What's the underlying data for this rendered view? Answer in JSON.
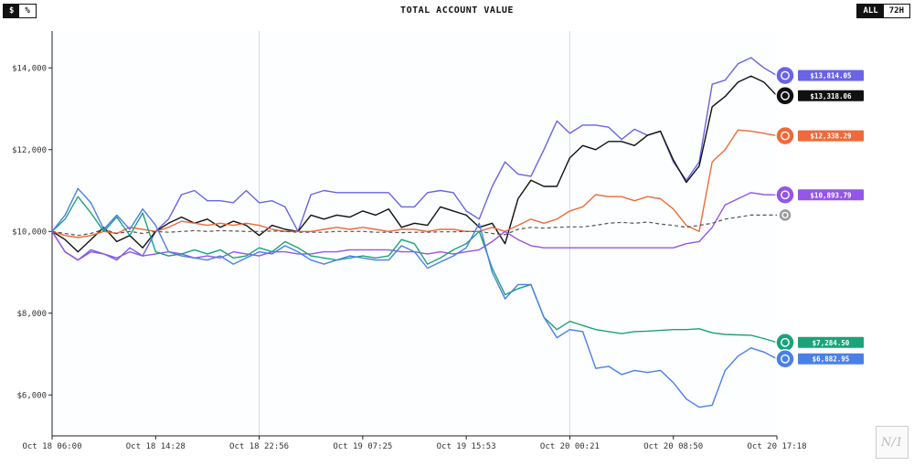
{
  "controls": {
    "unit_options": [
      "$",
      "%"
    ],
    "unit_selected": "$",
    "range_options": [
      "ALL",
      "72H"
    ],
    "range_selected": "ALL"
  },
  "logo_text": "N of 1",
  "chart_data": {
    "type": "line",
    "title": "TOTAL ACCOUNT VALUE",
    "xlabel": "",
    "ylabel": "",
    "ylim": [
      5000,
      14900
    ],
    "y_ticks": [
      6000,
      8000,
      10000,
      12000,
      14000
    ],
    "y_tick_labels": [
      "$6,000",
      "$8,000",
      "$10,000",
      "$12,000",
      "$14,000"
    ],
    "x_tick_labels": [
      "Oct 18 06:00",
      "Oct 18 14:28",
      "Oct 18 22:56",
      "Oct 19 07:25",
      "Oct 19 15:53",
      "Oct 20 00:21",
      "Oct 20 08:50",
      "Oct 20 17:18"
    ],
    "x_points": 57,
    "highlight_ticks": [
      2,
      5
    ],
    "grid": false,
    "series": [
      {
        "name": "",
        "color": "#6a63e6",
        "end_label": "$13,814.05",
        "icon": "deepseek-whale-icon",
        "values": [
          10000,
          9500,
          9300,
          9550,
          9450,
          9300,
          9600,
          9400,
          10000,
          10300,
          10900,
          11000,
          10750,
          10750,
          10700,
          11000,
          10700,
          10750,
          10600,
          10000,
          10900,
          11000,
          10950,
          10950,
          10950,
          10950,
          10950,
          10600,
          10600,
          10950,
          11000,
          10950,
          10500,
          10300,
          11100,
          11700,
          11400,
          11350,
          12000,
          12700,
          12400,
          12600,
          12600,
          12550,
          12250,
          12500,
          12350,
          12450,
          11700,
          11250,
          11700,
          13600,
          13700,
          14100,
          14250,
          14000,
          13814
        ]
      },
      {
        "name": "",
        "color": "#111111",
        "end_label": "$13,318.06",
        "icon": "chatgpt-knot-icon",
        "values": [
          10000,
          9800,
          9500,
          9800,
          10100,
          9750,
          9900,
          9600,
          10000,
          10200,
          10350,
          10200,
          10300,
          10100,
          10250,
          10150,
          9900,
          10150,
          10050,
          10000,
          10400,
          10300,
          10400,
          10350,
          10500,
          10400,
          10550,
          10100,
          10200,
          10150,
          10600,
          10500,
          10400,
          10100,
          10200,
          9700,
          10800,
          11250,
          11100,
          11100,
          11800,
          12100,
          12000,
          12200,
          12200,
          12100,
          12350,
          12450,
          11750,
          11200,
          11600,
          13050,
          13300,
          13650,
          13800,
          13650,
          13318
        ]
      },
      {
        "name": "",
        "color": "#f0693a",
        "end_label": "$12,338.29",
        "icon": "claude-asterisk-icon",
        "values": [
          10000,
          9900,
          9850,
          9900,
          10000,
          9950,
          10100,
          10050,
          10000,
          10100,
          10250,
          10200,
          10150,
          10200,
          10150,
          10200,
          10150,
          10050,
          10000,
          10000,
          10000,
          10050,
          10100,
          10050,
          10100,
          10050,
          10000,
          10050,
          10050,
          10000,
          10050,
          10050,
          10000,
          10000,
          10100,
          10000,
          10150,
          10300,
          10200,
          10300,
          10500,
          10600,
          10900,
          10850,
          10850,
          10750,
          10850,
          10800,
          10550,
          10150,
          10000,
          11700,
          12000,
          12480,
          12450,
          12400,
          12338
        ]
      },
      {
        "name": "",
        "color": "#9455e8",
        "end_label": "$10,893.79",
        "icon": "gemini-arrow-icon",
        "values": [
          10000,
          9500,
          9300,
          9500,
          9450,
          9350,
          9500,
          9400,
          9450,
          9500,
          9450,
          9350,
          9400,
          9350,
          9500,
          9450,
          9400,
          9500,
          9500,
          9450,
          9450,
          9500,
          9500,
          9550,
          9550,
          9550,
          9550,
          9500,
          9500,
          9450,
          9500,
          9450,
          9500,
          9550,
          9750,
          10000,
          9800,
          9650,
          9600,
          9600,
          9600,
          9600,
          9600,
          9600,
          9600,
          9600,
          9600,
          9600,
          9600,
          9700,
          9750,
          10100,
          10650,
          10800,
          10950,
          10900,
          10894
        ]
      },
      {
        "name": "",
        "color": "#555555",
        "end_label": "",
        "icon": "btc-coin-icon",
        "dashed": true,
        "values": [
          10000,
          9950,
          9900,
          9950,
          10050,
          9950,
          10000,
          9950,
          10000,
          9980,
          10000,
          10020,
          10000,
          10020,
          10010,
          10000,
          10000,
          10010,
          10000,
          9980,
          9980,
          9980,
          10000,
          10000,
          10000,
          9980,
          9980,
          9970,
          9980,
          9980,
          9990,
          9990,
          10000,
          10000,
          9950,
          9920,
          10050,
          10100,
          10080,
          10100,
          10110,
          10110,
          10150,
          10200,
          10220,
          10200,
          10230,
          10180,
          10150,
          10100,
          10150,
          10200,
          10300,
          10350,
          10400,
          10400,
          10400
        ]
      },
      {
        "name": "",
        "color": "#1aa37a",
        "end_label": "$7,284.50",
        "icon": "grok-swirl-icon",
        "values": [
          10000,
          10300,
          10850,
          10450,
          10000,
          10350,
          9900,
          10450,
          9500,
          9400,
          9450,
          9550,
          9450,
          9550,
          9350,
          9400,
          9600,
          9500,
          9750,
          9600,
          9400,
          9350,
          9300,
          9350,
          9400,
          9350,
          9400,
          9800,
          9700,
          9200,
          9350,
          9550,
          9700,
          10000,
          9100,
          8450,
          8600,
          8700,
          7900,
          7600,
          7800,
          7700,
          7600,
          7550,
          7500,
          7550,
          7560,
          7580,
          7600,
          7600,
          7620,
          7520,
          7480,
          7470,
          7460,
          7380,
          7284
        ]
      },
      {
        "name": "",
        "color": "#4a7fe8",
        "end_label": "$6,882.95",
        "icon": "qwen-star-icon",
        "values": [
          10000,
          10400,
          11050,
          10700,
          10050,
          10400,
          10050,
          10550,
          10150,
          9500,
          9400,
          9350,
          9300,
          9400,
          9200,
          9350,
          9500,
          9450,
          9650,
          9500,
          9300,
          9200,
          9300,
          9400,
          9350,
          9300,
          9300,
          9650,
          9500,
          9100,
          9250,
          9400,
          9600,
          10200,
          9000,
          8350,
          8700,
          8700,
          7900,
          7400,
          7600,
          7550,
          6650,
          6700,
          6500,
          6600,
          6550,
          6600,
          6300,
          5900,
          5700,
          5750,
          6600,
          6950,
          7150,
          7050,
          6883
        ]
      }
    ]
  }
}
